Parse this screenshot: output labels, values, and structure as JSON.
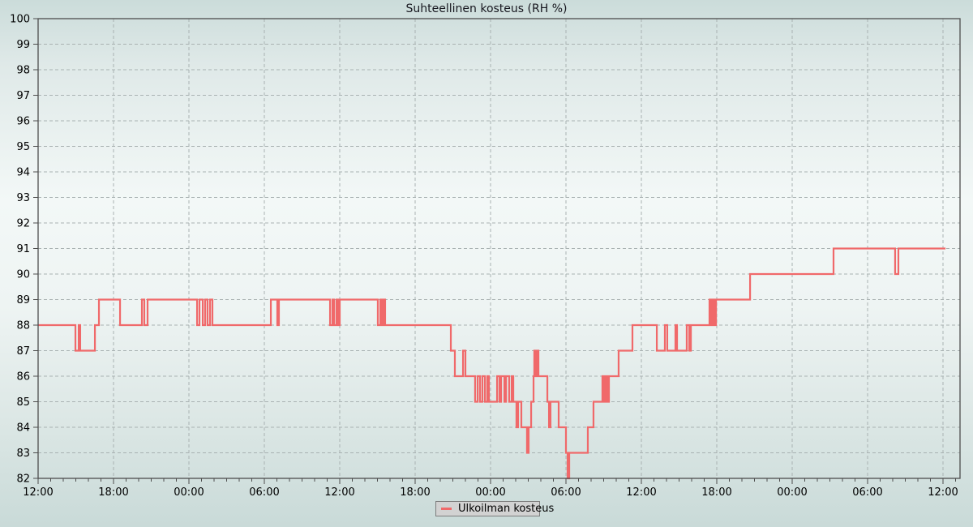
{
  "title": "Suhteellinen kosteus (RH %)",
  "legend": {
    "position": "bottom-center",
    "items": [
      {
        "label": "Ulkoilman kosteus",
        "marker": "line-dash-icon",
        "color": "#f0696a"
      }
    ]
  },
  "colors": {
    "series": "#f0696a",
    "grid": "#a9b2b2",
    "axis": "#4d4d4d",
    "text": "#000000",
    "title_text": "#17171f",
    "legend_bg": "#d2d2d2",
    "legend_border": "#7d7d7d",
    "bg_top": "#cbdcda",
    "bg_mid": "#f3f8f7",
    "bg_bottom": "#c9dad8"
  },
  "chart_data": {
    "type": "line",
    "line_style": "step-after",
    "title": "Suhteellinen kosteus (RH %)",
    "xlabel": "",
    "ylabel": "",
    "ylim": [
      82,
      100
    ],
    "xlim_hours": [
      0,
      73.4
    ],
    "grid": true,
    "grid_style": "dashed",
    "legend_position": "bottom-center",
    "y_ticks": [
      100,
      99,
      98,
      97,
      96,
      95,
      94,
      93,
      92,
      91,
      90,
      89,
      88,
      87,
      86,
      85,
      84,
      83,
      82
    ],
    "x_ticks": {
      "hours": [
        0,
        6,
        12,
        18,
        24,
        30,
        36,
        42,
        48,
        54,
        60,
        66,
        72
      ],
      "labels": [
        "12:00",
        "18:00",
        "00:00",
        "06:00",
        "12:00",
        "18:00",
        "00:00",
        "06:00",
        "12:00",
        "18:00",
        "00:00",
        "06:00",
        "12:00"
      ]
    },
    "x_minor_tick_hours": 1,
    "series": [
      {
        "name": "Ulkoilman kosteus",
        "color": "#f0696a",
        "unit": "RH %",
        "points": [
          [
            0,
            88
          ],
          [
            2.97,
            87
          ],
          [
            3.23,
            88
          ],
          [
            3.35,
            87
          ],
          [
            4.52,
            88
          ],
          [
            4.84,
            89
          ],
          [
            6.52,
            88
          ],
          [
            8.26,
            89
          ],
          [
            8.45,
            88
          ],
          [
            8.71,
            89
          ],
          [
            12.65,
            88
          ],
          [
            12.84,
            89
          ],
          [
            13.1,
            88
          ],
          [
            13.29,
            89
          ],
          [
            13.48,
            88
          ],
          [
            13.68,
            89
          ],
          [
            13.87,
            88
          ],
          [
            18.52,
            89
          ],
          [
            19.03,
            88
          ],
          [
            19.16,
            89
          ],
          [
            23.23,
            88
          ],
          [
            23.42,
            89
          ],
          [
            23.55,
            88
          ],
          [
            23.74,
            89
          ],
          [
            23.87,
            88
          ],
          [
            24.0,
            89
          ],
          [
            27.03,
            88
          ],
          [
            27.23,
            89
          ],
          [
            27.35,
            88
          ],
          [
            27.48,
            89
          ],
          [
            27.61,
            88
          ],
          [
            32.84,
            87
          ],
          [
            33.16,
            86
          ],
          [
            33.81,
            87
          ],
          [
            34.0,
            86
          ],
          [
            34.77,
            85
          ],
          [
            34.97,
            86
          ],
          [
            35.16,
            85
          ],
          [
            35.35,
            86
          ],
          [
            35.55,
            85
          ],
          [
            35.74,
            86
          ],
          [
            35.87,
            85
          ],
          [
            36.52,
            86
          ],
          [
            36.71,
            85
          ],
          [
            36.84,
            86
          ],
          [
            37.1,
            85
          ],
          [
            37.23,
            86
          ],
          [
            37.48,
            85
          ],
          [
            37.68,
            86
          ],
          [
            37.81,
            85
          ],
          [
            38.06,
            84
          ],
          [
            38.19,
            85
          ],
          [
            38.45,
            84
          ],
          [
            38.9,
            83
          ],
          [
            39.03,
            84
          ],
          [
            39.23,
            85
          ],
          [
            39.42,
            86
          ],
          [
            39.48,
            87
          ],
          [
            39.61,
            86
          ],
          [
            39.68,
            87
          ],
          [
            39.81,
            86
          ],
          [
            40.52,
            85
          ],
          [
            40.65,
            84
          ],
          [
            40.77,
            85
          ],
          [
            41.42,
            84
          ],
          [
            42.0,
            83
          ],
          [
            42.13,
            82
          ],
          [
            42.26,
            83
          ],
          [
            43.74,
            84
          ],
          [
            44.19,
            85
          ],
          [
            44.9,
            86
          ],
          [
            45.03,
            85
          ],
          [
            45.16,
            86
          ],
          [
            45.29,
            85
          ],
          [
            45.42,
            86
          ],
          [
            46.19,
            87
          ],
          [
            47.29,
            88
          ],
          [
            49.23,
            87
          ],
          [
            49.87,
            88
          ],
          [
            50.06,
            87
          ],
          [
            50.71,
            88
          ],
          [
            50.84,
            87
          ],
          [
            51.61,
            88
          ],
          [
            51.81,
            87
          ],
          [
            51.94,
            88
          ],
          [
            53.42,
            89
          ],
          [
            53.55,
            88
          ],
          [
            53.68,
            89
          ],
          [
            53.81,
            88
          ],
          [
            53.94,
            89
          ],
          [
            56.65,
            90
          ],
          [
            63.29,
            91
          ],
          [
            68.19,
            90
          ],
          [
            68.45,
            91
          ],
          [
            72.2,
            91
          ]
        ]
      }
    ]
  }
}
